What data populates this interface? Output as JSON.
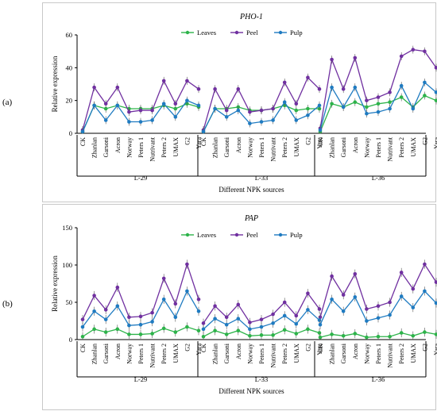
{
  "panel_labels": [
    "(a)",
    "(b)"
  ],
  "chart_data": [
    {
      "type": "line",
      "title": "PHO-1",
      "ylabel": "Relative expression",
      "xlabel": "Different NPK sources",
      "ylim": [
        0,
        60
      ],
      "yticks": [
        0,
        20,
        40,
        60
      ],
      "groups": [
        "L-29",
        "L-33",
        "L-36"
      ],
      "categories": [
        "CK",
        "Zhanlan",
        "Garsoni",
        "Acron",
        "Norway",
        "Peters 1",
        "Nutrivant",
        "Peters 2",
        "UMAX",
        "G2",
        "Yara"
      ],
      "legend": {
        "position": "top-center",
        "entries": [
          "Leaves",
          "Peel",
          "Pulp"
        ]
      },
      "series": [
        {
          "name": "Leaves",
          "color": "#2db34a",
          "values": [
            [
              1,
              17,
              15,
              17,
              15,
              15,
              15,
              17,
              15,
              18,
              16
            ],
            [
              1,
              15,
              15,
              16,
              14,
              14,
              15,
              17,
              14,
              15,
              15
            ],
            [
              1,
              18,
              16,
              19,
              16,
              18,
              19,
              22,
              16,
              23,
              20
            ]
          ]
        },
        {
          "name": "Peel",
          "color": "#7030a0",
          "values": [
            [
              2,
              28,
              18,
              28,
              13,
              14,
              14,
              32,
              18,
              32,
              27
            ],
            [
              2,
              27,
              14,
              27,
              13,
              14,
              15,
              31,
              18,
              34,
              27
            ],
            [
              3,
              45,
              27,
              46,
              20,
              22,
              25,
              47,
              51,
              50,
              40
            ]
          ]
        },
        {
          "name": "Pulp",
          "color": "#1f7bc1",
          "values": [
            [
              1,
              17,
              8,
              17,
              7,
              7,
              8,
              18,
              10,
              20,
              17
            ],
            [
              1,
              15,
              10,
              14,
              6,
              7,
              8,
              19,
              8,
              11,
              17
            ],
            [
              2,
              28,
              16,
              28,
              12,
              13,
              15,
              29,
              15,
              31,
              25
            ]
          ]
        }
      ]
    },
    {
      "type": "line",
      "title": "PAP",
      "ylabel": "Relative expression",
      "xlabel": "Different NPK sources",
      "ylim": [
        0,
        150
      ],
      "yticks": [
        0,
        50,
        100,
        150
      ],
      "groups": [
        "L-29",
        "L-33",
        "L-36"
      ],
      "categories": [
        "CK",
        "Zhanlan",
        "Garsoni",
        "Acron",
        "Norway",
        "Peters 1",
        "Nutrivant",
        "Peters 2",
        "UMAX",
        "G2",
        "Yara"
      ],
      "legend": {
        "position": "top-center",
        "entries": [
          "Leaves",
          "Peel",
          "Pulp"
        ]
      },
      "series": [
        {
          "name": "Leaves",
          "color": "#2db34a",
          "values": [
            [
              4,
              14,
              10,
              14,
              7,
              7,
              8,
              15,
              10,
              17,
              12
            ],
            [
              4,
              12,
              7,
              12,
              5,
              6,
              6,
              13,
              8,
              14,
              9
            ],
            [
              3,
              7,
              5,
              8,
              3,
              4,
              4,
              9,
              5,
              10,
              7
            ]
          ]
        },
        {
          "name": "Peel",
          "color": "#7030a0",
          "values": [
            [
              27,
              59,
              40,
              70,
              30,
              31,
              36,
              82,
              48,
              101,
              54
            ],
            [
              22,
              45,
              30,
              47,
              23,
              27,
              34,
              50,
              32,
              62,
              41
            ],
            [
              30,
              85,
              60,
              88,
              41,
              45,
              50,
              90,
              68,
              101,
              77
            ]
          ]
        },
        {
          "name": "Pulp",
          "color": "#1f7bc1",
          "values": [
            [
              17,
              38,
              27,
              45,
              19,
              20,
              24,
              54,
              30,
              65,
              38
            ],
            [
              14,
              28,
              20,
              28,
              14,
              17,
              22,
              32,
              21,
              40,
              26
            ],
            [
              20,
              54,
              38,
              57,
              25,
              29,
              33,
              58,
              43,
              65,
              49
            ]
          ]
        }
      ]
    }
  ]
}
